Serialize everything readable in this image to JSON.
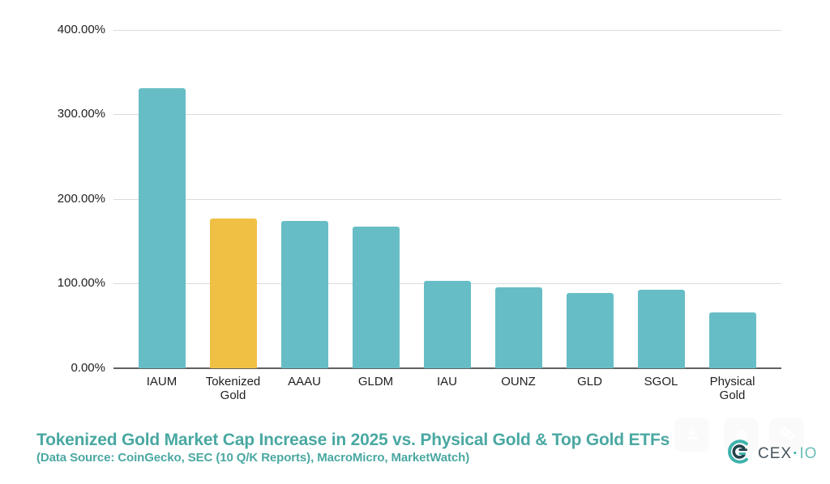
{
  "chart_data": {
    "type": "bar",
    "title": "Tokenized Gold Market Cap Increase in 2025 vs. Physical Gold & Top Gold ETFs",
    "subtitle": "(Data Source: CoinGecko, SEC (10 Q/K Reports), MacroMicro, MarketWatch)",
    "categories": [
      "IAUM",
      "Tokenized Gold",
      "AAAU",
      "GLDM",
      "IAU",
      "OUNZ",
      "GLD",
      "SGOL",
      "Physical Gold"
    ],
    "values": [
      331,
      176.6,
      174.4,
      167.1,
      103.4,
      95.5,
      88.5,
      92.3,
      66.2
    ],
    "unit": "%",
    "highlight_category": "Tokenized Gold",
    "y_ticks": [
      "400.00%",
      "300.00%",
      "200.00%",
      "100.00%",
      "0.00%"
    ],
    "y_tick_values": [
      400,
      300,
      200,
      100,
      0
    ],
    "ylim": [
      0,
      400
    ],
    "grid": "horizontal",
    "legend": "none",
    "colors": {
      "bar_default": "#67bdc5",
      "bar_highlight": "#f0c044",
      "gridline": "#dbdbdb",
      "axis_line": "#616161",
      "tick_label": "#1f1f1f",
      "title": "#4aa8a2"
    }
  },
  "toolbar": {
    "buttons": [
      {
        "icon": "download-icon"
      },
      {
        "icon": "fingerprint-icon"
      },
      {
        "icon": "gear-icon"
      }
    ]
  },
  "logo": {
    "primary": "CEX",
    "separator": "·",
    "secondary": "IO"
  }
}
